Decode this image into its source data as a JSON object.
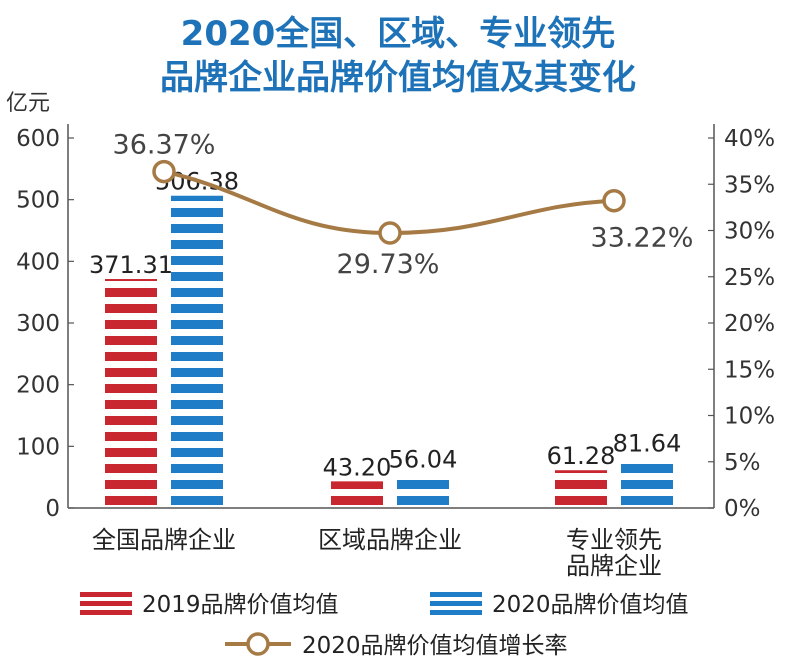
{
  "title_lines": [
    "2020全国、区域、专业领先",
    "品牌企业品牌价值均值及其变化"
  ],
  "unit_label": "亿元",
  "colors": {
    "red": "#c8272f",
    "blue": "#1f7cc6",
    "line": "#a57a45",
    "title": "#1e73b8"
  },
  "chart_data": {
    "type": "bar",
    "title": "2020全国、区域、专业领先品牌企业品牌价值均值及其变化",
    "categories": [
      [
        "全国品牌企业"
      ],
      [
        "区域品牌企业"
      ],
      [
        "专业领先",
        "品牌企业"
      ]
    ],
    "ylabel": "亿元",
    "ylim": [
      0,
      600
    ],
    "yticks": [
      0,
      100,
      200,
      300,
      400,
      500,
      600
    ],
    "y2lim": [
      0,
      40
    ],
    "y2ticks": [
      "0%",
      "5%",
      "10%",
      "15%",
      "20%",
      "25%",
      "30%",
      "35%",
      "40%"
    ],
    "series": [
      {
        "name": "2019品牌价值均值",
        "type": "bar",
        "values": [
          371.31,
          43.2,
          61.28
        ],
        "labels": [
          "371.31",
          "43.20",
          "61.28"
        ]
      },
      {
        "name": "2020品牌价值均值",
        "type": "bar",
        "values": [
          506.38,
          56.04,
          81.64
        ],
        "labels": [
          "506.38",
          "56.04",
          "81.64"
        ]
      },
      {
        "name": "2020品牌价值均值增长率",
        "type": "line",
        "axis": "right",
        "values": [
          36.37,
          29.73,
          33.22
        ],
        "labels": [
          "36.37%",
          "29.73%",
          "33.22%"
        ]
      }
    ],
    "legend_position": "bottom"
  }
}
